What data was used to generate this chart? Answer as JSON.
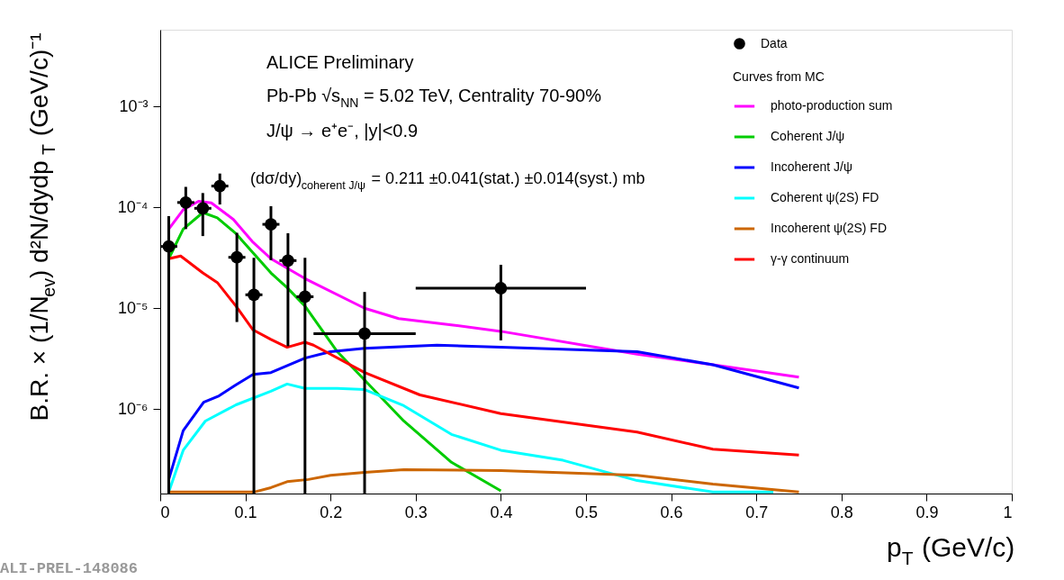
{
  "chart_data": {
    "type": "line",
    "xlabel": "p$_{T}$ (GeV/c)",
    "ylabel": "B.R. × (1/N$_{ev}$) d²N/dydp$_{T}$ (GeV/c)⁻¹",
    "legend_title": "Curves from MC",
    "log": "y",
    "grid": false,
    "legend": "top right",
    "line_style": "solid",
    "xlim": [
      0,
      1
    ],
    "xticks": [
      0,
      0.1,
      0.2,
      0.3,
      0.4,
      0.5,
      0.6,
      0.7,
      0.8,
      0.9,
      1
    ],
    "ylim": [
      1.45e-07,
      0.0058
    ],
    "yticks": [
      {
        "value": 1e-06,
        "label": "10⁻⁶"
      },
      {
        "value": 1e-05,
        "label": "10⁻⁵"
      },
      {
        "value": 0.0001,
        "label": "10⁻⁴"
      },
      {
        "value": 0.001,
        "label": "10⁻³"
      }
    ],
    "annotations": [
      "ALICE Preliminary",
      "Pb-Pb √s$_{NN}$ = 5.02 TeV, Centrality 70-90%",
      "J/ψ → e⁺e⁻, |y|<0.9",
      "(dσ/dy)$_{coherent J/ψ}$ = 0.211 ±0.041(stat.) ±0.014(syst.) mb",
      "ALI-PREL-148086"
    ],
    "series": [
      {
        "name": "photo-production sum",
        "color": "#ff00ff",
        "x": [
          0.01,
          0.027,
          0.045,
          0.06,
          0.086,
          0.108,
          0.13,
          0.17,
          0.24,
          0.28,
          0.344,
          0.4,
          0.56,
          0.649,
          0.75
        ],
        "values": [
          6.1e-05,
          9.5e-05,
          0.000115,
          0.000111,
          7.6e-05,
          4.6e-05,
          3.1e-05,
          1.97e-05,
          1e-05,
          7.9e-06,
          6.8e-06,
          5.9e-06,
          3.5e-06,
          2.75e-06,
          2.07e-06
        ]
      },
      {
        "name": "Coherent J/ψ",
        "color": "#00cc00",
        "x": [
          0.01,
          0.027,
          0.05,
          0.067,
          0.089,
          0.13,
          0.149,
          0.17,
          0.208,
          0.24,
          0.286,
          0.342,
          0.4
        ],
        "values": [
          3.1e-05,
          6.1e-05,
          8.9e-05,
          7.9e-05,
          5.5e-05,
          2.24e-05,
          1.6e-05,
          1.05e-05,
          3.7e-06,
          1.94e-06,
          7.6e-07,
          2.96e-07,
          1.54e-07
        ]
      },
      {
        "name": "Incoherent J/ψ",
        "color": "#0000ff",
        "x": [
          0.01,
          0.027,
          0.051,
          0.069,
          0.089,
          0.109,
          0.13,
          0.17,
          0.2,
          0.24,
          0.325,
          0.4,
          0.56,
          0.649,
          0.75
        ],
        "values": [
          2e-07,
          6.1e-07,
          1.17e-06,
          1.35e-06,
          1.74e-06,
          2.2e-06,
          2.3e-06,
          3.2e-06,
          3.7e-06,
          4e-06,
          4.3e-06,
          4.1e-06,
          3.7e-06,
          2.75e-06,
          1.62e-06
        ]
      },
      {
        "name": "Coherent ψ(2S) FD",
        "color": "#00ffff",
        "x": [
          0.01,
          0.027,
          0.053,
          0.089,
          0.13,
          0.149,
          0.17,
          0.208,
          0.24,
          0.286,
          0.342,
          0.4,
          0.473,
          0.56,
          0.649,
          0.72
        ],
        "values": [
          1.5e-07,
          3.9e-07,
          7.6e-07,
          1.1e-06,
          1.5e-06,
          1.77e-06,
          1.6e-06,
          1.6e-06,
          1.56e-06,
          1.08e-06,
          5.6e-07,
          3.9e-07,
          3.1e-07,
          1.95e-07,
          1.5e-07,
          1.5e-07
        ]
      },
      {
        "name": "Incoherent ψ(2S) FD",
        "color": "#cc6600",
        "x": [
          0.01,
          0.11,
          0.13,
          0.149,
          0.174,
          0.2,
          0.24,
          0.286,
          0.4,
          0.56,
          0.649,
          0.75
        ],
        "values": [
          1.5e-07,
          1.5e-07,
          1.66e-07,
          1.9e-07,
          2e-07,
          2.2e-07,
          2.35e-07,
          2.5e-07,
          2.45e-07,
          2.2e-07,
          1.8e-07,
          1.5e-07
        ]
      },
      {
        "name": "γ-γ continuum",
        "color": "#ff0000",
        "x": [
          0.01,
          0.024,
          0.05,
          0.067,
          0.089,
          0.109,
          0.13,
          0.149,
          0.17,
          0.18,
          0.24,
          0.305,
          0.4,
          0.56,
          0.649,
          0.75
        ],
        "values": [
          3.1e-05,
          3.3e-05,
          2.24e-05,
          1.8e-05,
          1.05e-05,
          6.1e-06,
          4.9e-06,
          4.1e-06,
          4.6e-06,
          4.3e-06,
          2.3e-06,
          1.38e-06,
          9e-07,
          5.9e-07,
          4e-07,
          3.5e-07
        ]
      },
      {
        "name": "Data",
        "type": "scatter",
        "marker": "circle",
        "color": "#000000",
        "x": [
          0.01,
          0.03,
          0.05,
          0.07,
          0.09,
          0.11,
          0.13,
          0.15,
          0.17,
          0.24,
          0.4
        ],
        "values": [
          4.1e-05,
          0.000112,
          9.8e-05,
          0.000163,
          3.2e-05,
          1.36e-05,
          6.8e-05,
          2.97e-05,
          1.3e-05,
          5.6e-06,
          1.58e-05
        ],
        "errors": [
          [
            1.45e-07,
            8.2e-05
          ],
          [
            6.1e-05,
            0.00016
          ],
          [
            5.2e-05,
            0.000139
          ],
          [
            0.000107,
            0.000217
          ],
          [
            7.3e-06,
            5.6e-05
          ],
          [
            1.45e-07,
            3.16e-05
          ],
          [
            3e-05,
            0.000103
          ],
          [
            4.2e-06,
            5.55e-05
          ],
          [
            1.45e-07,
            3.16e-05
          ],
          [
            1.45e-07,
            1.45e-05
          ],
          [
            4.8e-06,
            2.7e-05
          ]
        ],
        "xerrors": [
          0.01,
          0.01,
          0.01,
          0.01,
          0.01,
          0.01,
          0.01,
          0.01,
          0.01,
          [
            0.18,
            0.3
          ],
          [
            0.3,
            0.5
          ]
        ]
      }
    ]
  }
}
